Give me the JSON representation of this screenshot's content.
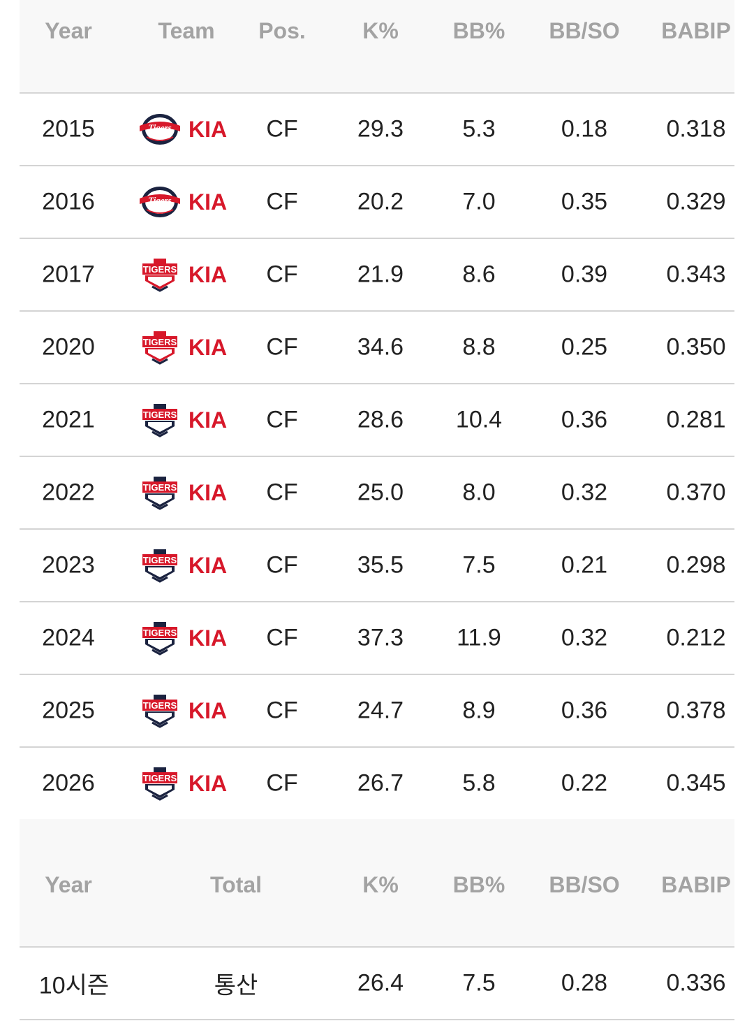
{
  "header": {
    "year": "Year",
    "team": "Team",
    "pos": "Pos.",
    "k": "K%",
    "bb": "BB%",
    "bbso": "BB/SO",
    "babip": "BABIP"
  },
  "rows": [
    {
      "year": "2015",
      "team": "KIA",
      "logo": "tigers-script-logo",
      "pos": "CF",
      "k": "29.3",
      "bb": "5.3",
      "bbso": "0.18",
      "babip": "0.318"
    },
    {
      "year": "2016",
      "team": "KIA",
      "logo": "tigers-script-logo",
      "pos": "CF",
      "k": "20.2",
      "bb": "7.0",
      "bbso": "0.35",
      "babip": "0.329"
    },
    {
      "year": "2017",
      "team": "KIA",
      "logo": "tigers-shield-red-logo",
      "pos": "CF",
      "k": "21.9",
      "bb": "8.6",
      "bbso": "0.39",
      "babip": "0.343"
    },
    {
      "year": "2020",
      "team": "KIA",
      "logo": "tigers-shield-red-logo",
      "pos": "CF",
      "k": "34.6",
      "bb": "8.8",
      "bbso": "0.25",
      "babip": "0.350"
    },
    {
      "year": "2021",
      "team": "KIA",
      "logo": "tigers-shield-dark-logo",
      "pos": "CF",
      "k": "28.6",
      "bb": "10.4",
      "bbso": "0.36",
      "babip": "0.281"
    },
    {
      "year": "2022",
      "team": "KIA",
      "logo": "tigers-shield-dark-logo",
      "pos": "CF",
      "k": "25.0",
      "bb": "8.0",
      "bbso": "0.32",
      "babip": "0.370"
    },
    {
      "year": "2023",
      "team": "KIA",
      "logo": "tigers-shield-dark-logo",
      "pos": "CF",
      "k": "35.5",
      "bb": "7.5",
      "bbso": "0.21",
      "babip": "0.298"
    },
    {
      "year": "2024",
      "team": "KIA",
      "logo": "tigers-shield-dark-logo",
      "pos": "CF",
      "k": "37.3",
      "bb": "11.9",
      "bbso": "0.32",
      "babip": "0.212"
    },
    {
      "year": "2025",
      "team": "KIA",
      "logo": "tigers-shield-dark-logo",
      "pos": "CF",
      "k": "24.7",
      "bb": "8.9",
      "bbso": "0.36",
      "babip": "0.378"
    },
    {
      "year": "2026",
      "team": "KIA",
      "logo": "tigers-shield-dark-logo",
      "pos": "CF",
      "k": "26.7",
      "bb": "5.8",
      "bbso": "0.22",
      "babip": "0.345"
    }
  ],
  "total_header": {
    "year": "Year",
    "total": "Total",
    "k": "K%",
    "bb": "BB%",
    "bbso": "BB/SO",
    "babip": "BABIP"
  },
  "total_row": {
    "year": "10시즌",
    "total": "통산",
    "k": "26.4",
    "bb": "7.5",
    "bbso": "0.28",
    "babip": "0.336"
  },
  "colors": {
    "team_text": "#d7182a",
    "header_text": "#a3a3a3",
    "header_bg": "#f8f8f8",
    "divider": "#d4d4d4"
  }
}
